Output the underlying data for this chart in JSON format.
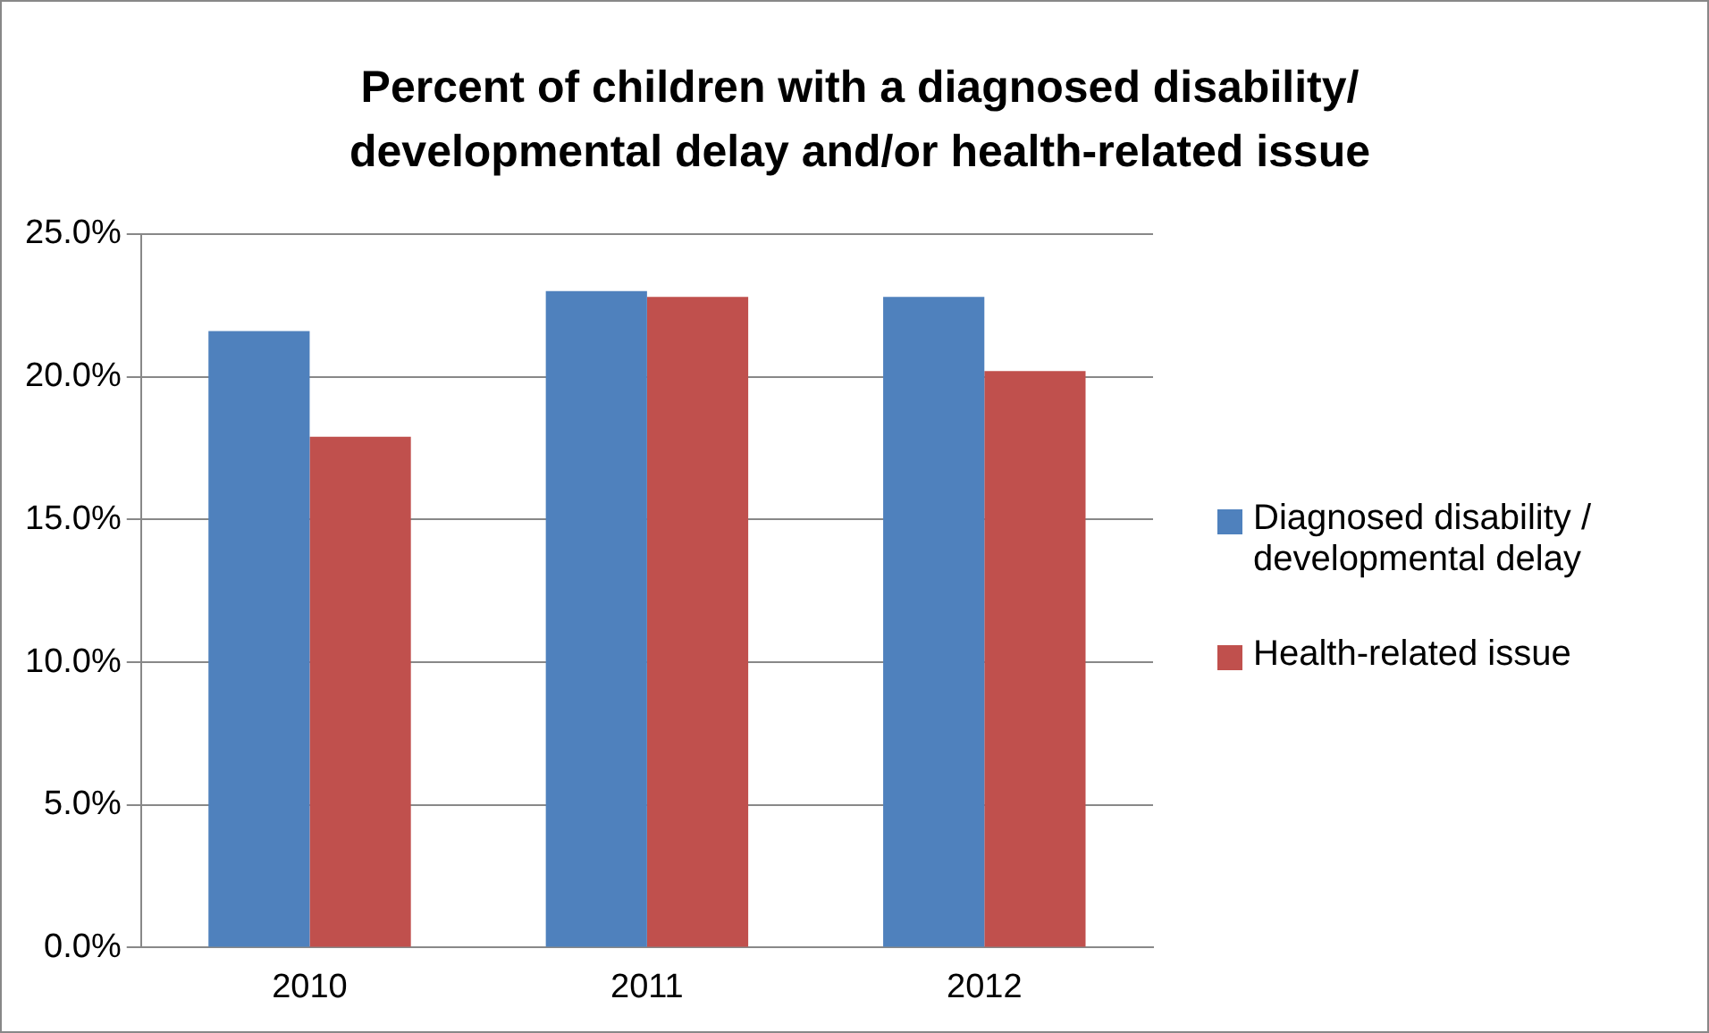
{
  "chart_data": {
    "type": "bar",
    "title": "Percent of children with a diagnosed disability/ developmental delay and/or health-related issue",
    "categories": [
      "2010",
      "2011",
      "2012"
    ],
    "series": [
      {
        "name": "Diagnosed disability / developmental delay",
        "color": "#4f81bd",
        "values": [
          21.6,
          23.0,
          22.8
        ]
      },
      {
        "name": "Health-related issue",
        "color": "#c0504d",
        "values": [
          17.9,
          22.8,
          20.2
        ]
      }
    ],
    "ylim": [
      0,
      25
    ],
    "yticks": [
      {
        "value": 0,
        "label": "0.0%"
      },
      {
        "value": 5,
        "label": "5.0%"
      },
      {
        "value": 10,
        "label": "10.0%"
      },
      {
        "value": 15,
        "label": "15.0%"
      },
      {
        "value": 20,
        "label": "20.0%"
      },
      {
        "value": 25,
        "label": "25.0%"
      }
    ],
    "grid": "y",
    "legend": "right"
  }
}
